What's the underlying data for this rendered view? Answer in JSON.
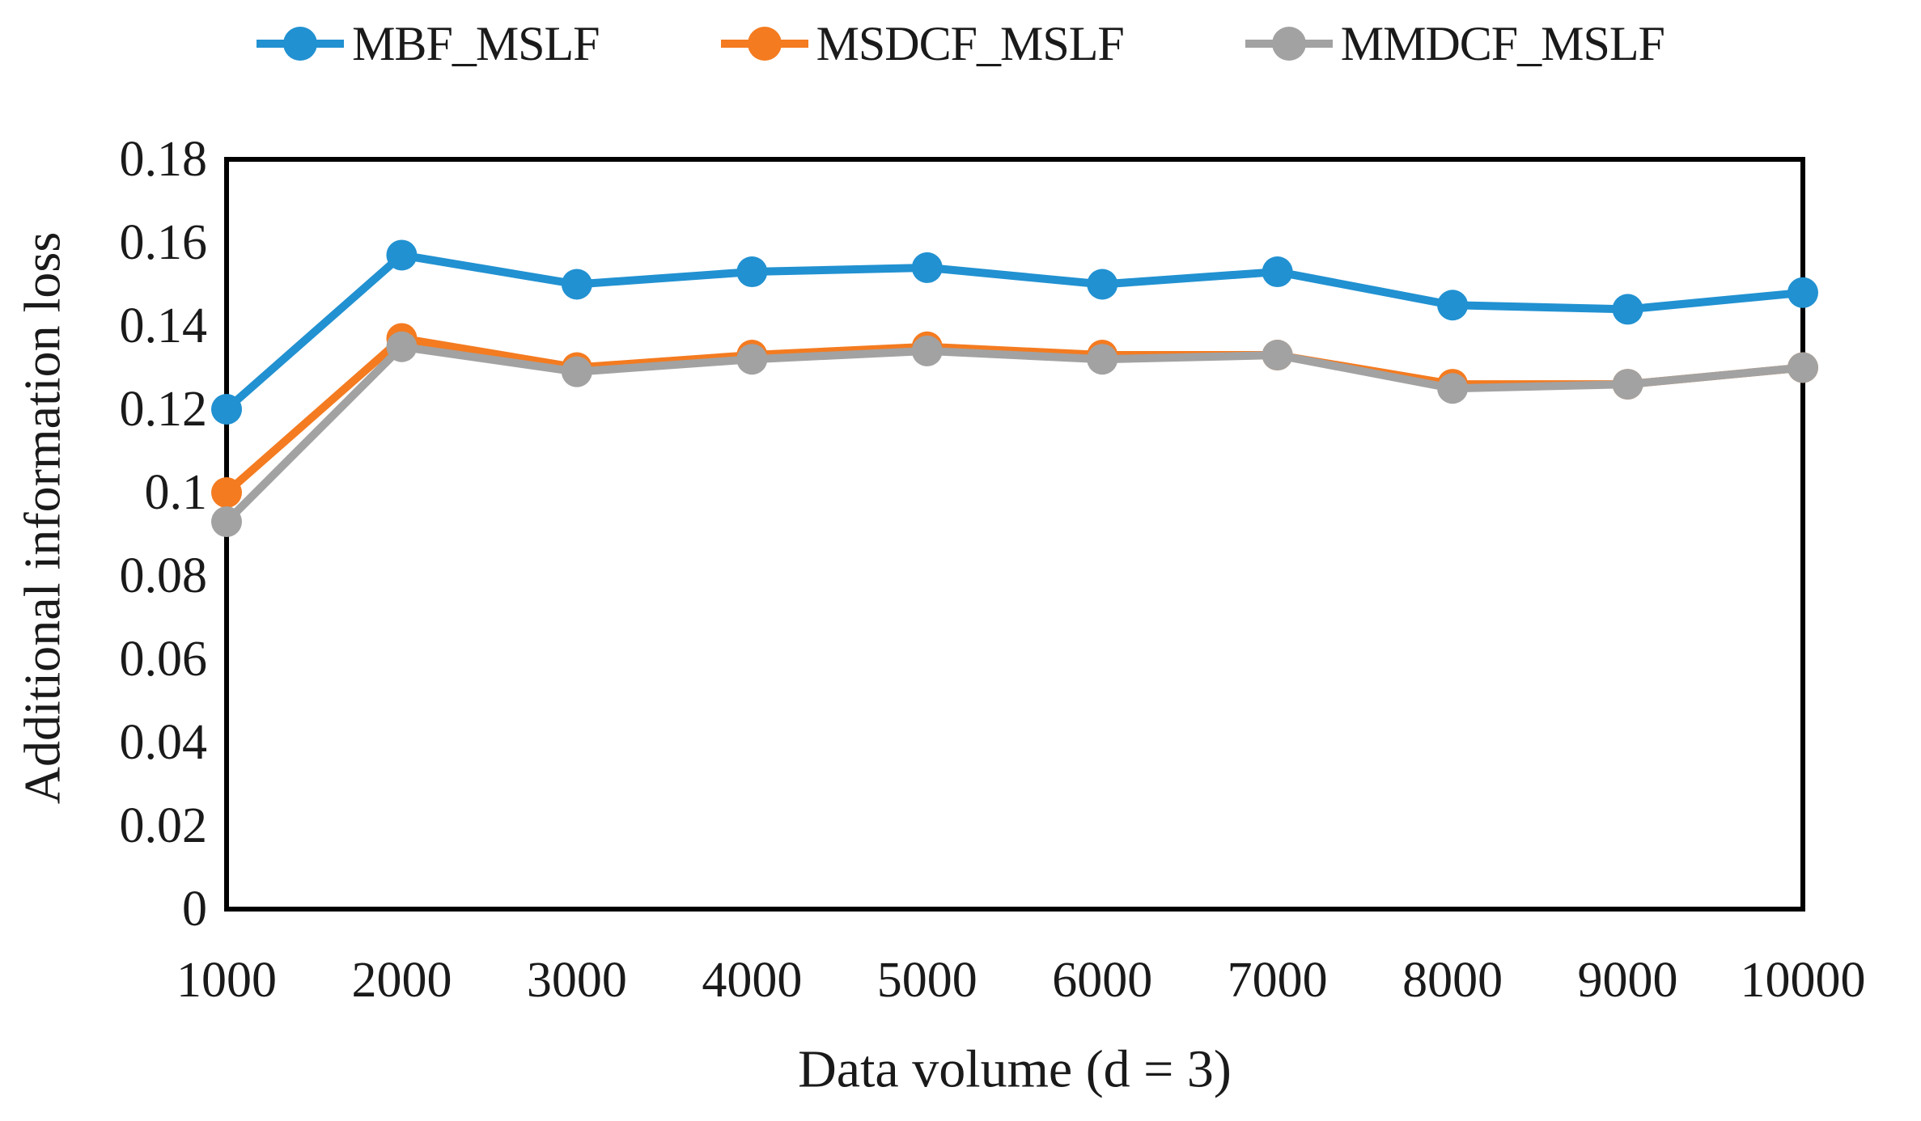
{
  "figure": {
    "background": "#ffffff",
    "text_color": "#1a1a1a"
  },
  "chart_data": {
    "type": "line",
    "title": "",
    "xlabel": "Data volume (d = 3)",
    "ylabel": "Additional information loss",
    "x_categories": [
      "1000",
      "2000",
      "3000",
      "4000",
      "5000",
      "6000",
      "7000",
      "8000",
      "9000",
      "10000"
    ],
    "ytick_labels": [
      "0",
      "0.02",
      "0.04",
      "0.06",
      "0.08",
      "0.1",
      "0.12",
      "0.14",
      "0.16",
      "0.18"
    ],
    "ylim": [
      0,
      0.18
    ],
    "grid": false,
    "legend_position": "top",
    "marker": "circle",
    "series": [
      {
        "name": "MBF_MSLF",
        "color": "#2191D1",
        "values": [
          0.12,
          0.157,
          0.15,
          0.153,
          0.154,
          0.15,
          0.153,
          0.145,
          0.144,
          0.148
        ]
      },
      {
        "name": "MSDCF_MSLF",
        "color": "#F47B20",
        "values": [
          0.1,
          0.137,
          0.13,
          0.133,
          0.135,
          0.133,
          0.133,
          0.126,
          0.126,
          0.13
        ]
      },
      {
        "name": "MMDCF_MSLF",
        "color": "#A2A2A2",
        "values": [
          0.093,
          0.135,
          0.129,
          0.132,
          0.134,
          0.132,
          0.133,
          0.125,
          0.126,
          0.13
        ]
      }
    ]
  }
}
